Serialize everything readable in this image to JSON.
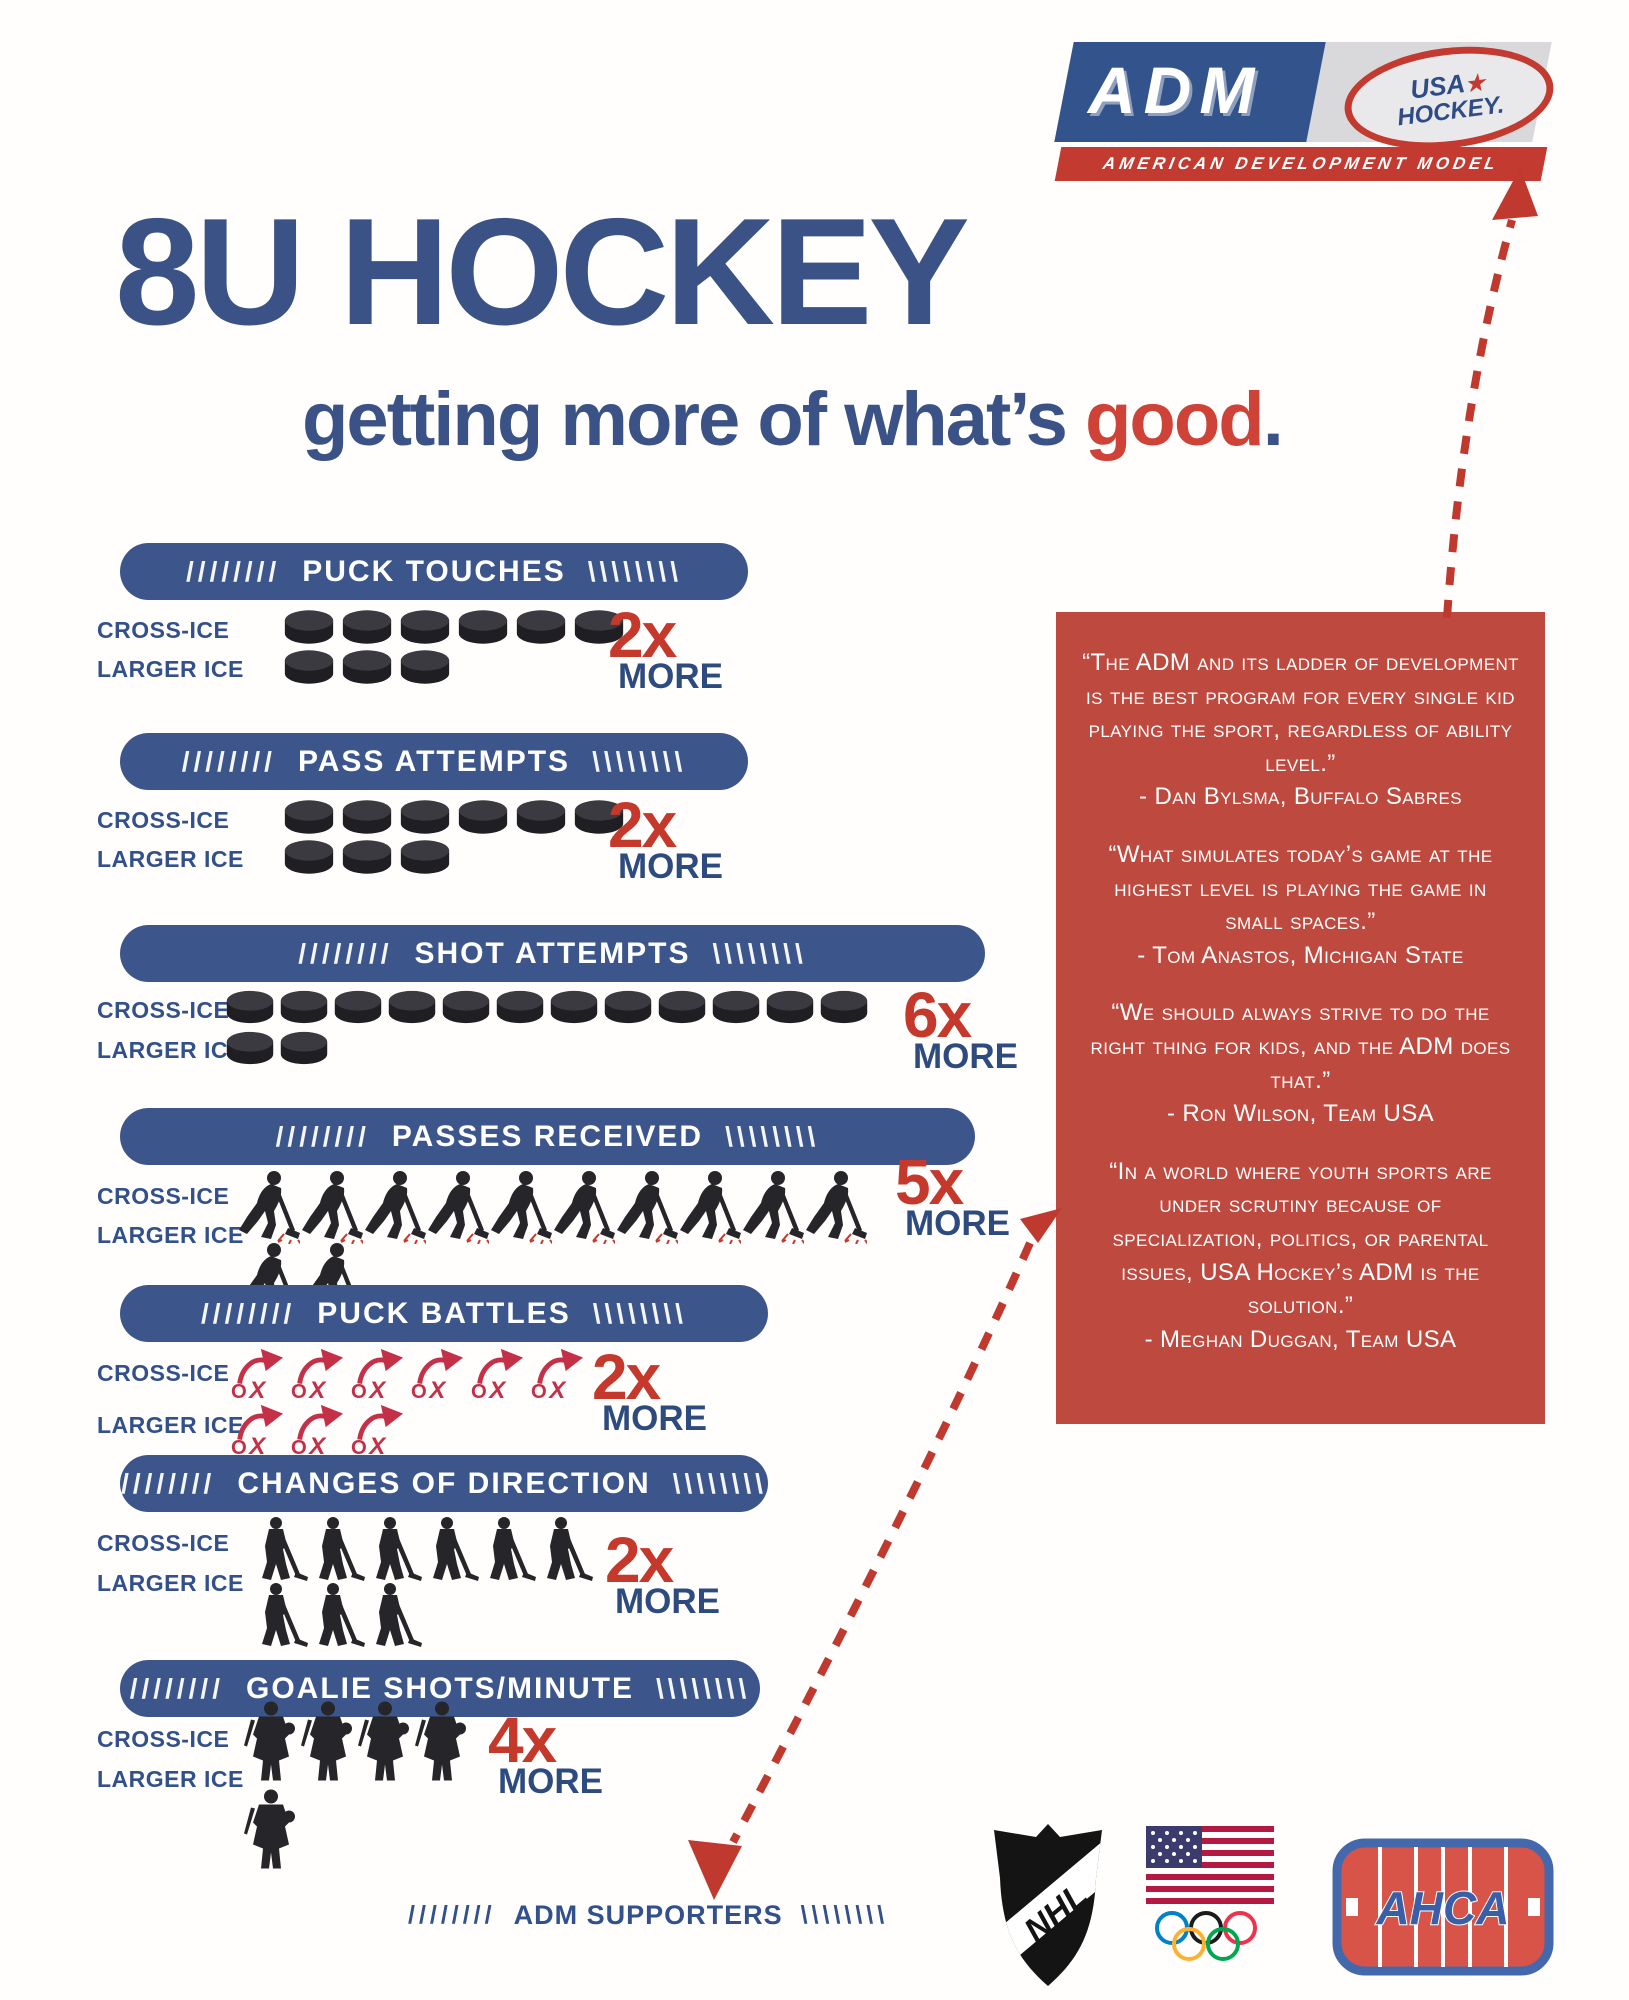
{
  "logo": {
    "adm": "ADM",
    "usa": "USA",
    "star": "★",
    "hockey": "HOCKEY.",
    "tagline": "AMERICAN DEVELOPMENT MODEL"
  },
  "title": "8U HOCKEY",
  "subtitle": {
    "lead": "getting more of what’s ",
    "highlight": "good",
    "period": "."
  },
  "decor": {
    "left": "////////",
    "right": "\\\\\\\\\\\\\\\\"
  },
  "row_labels": {
    "cross": "CROSS-ICE",
    "larger": "LARGER ICE"
  },
  "stats": [
    {
      "label": "PUCK TOUCHES",
      "icon": "puck",
      "cross": 6,
      "larger": 3,
      "mult": "2x",
      "more": "MORE"
    },
    {
      "label": "PASS ATTEMPTS",
      "icon": "puck",
      "cross": 6,
      "larger": 3,
      "mult": "2x",
      "more": "MORE"
    },
    {
      "label": "SHOT ATTEMPTS",
      "icon": "puck",
      "cross": 12,
      "larger": 2,
      "mult": "6x",
      "more": "MORE"
    },
    {
      "label": "PASSES RECEIVED",
      "icon": "skater",
      "cross": 10,
      "larger": 2,
      "mult": "5x",
      "more": "MORE"
    },
    {
      "label": "PUCK BATTLES",
      "icon": "battle",
      "cross": 6,
      "larger": 3,
      "mult": "2x",
      "more": "MORE"
    },
    {
      "label": "CHANGES OF DIRECTION",
      "icon": "player",
      "cross": 6,
      "larger": 3,
      "mult": "2x",
      "more": "MORE"
    },
    {
      "label": "GOALIE SHOTS/MINUTE",
      "icon": "goalie",
      "cross": 4,
      "larger": 1,
      "mult": "4x",
      "more": "MORE"
    }
  ],
  "quotes": [
    {
      "text": "“The ADM and its ladder of development is the best program for every single kid playing the sport, regardless of ability level.”",
      "attribution": "- Dan Bylsma, Buffalo Sabres"
    },
    {
      "text": "“What simulates today’s game at the highest level is playing the game in small spaces.”",
      "attribution": "- Tom Anastos, Michigan State"
    },
    {
      "text": "“We should always strive to do the right thing for kids, and the ADM does that.”",
      "attribution": "- Ron Wilson, Team USA"
    },
    {
      "text": "“In a world where youth sports are under scrutiny because of specialization, politics, or parental issues, USA Hockey’s ADM is the solution.”",
      "attribution": "- Meghan Duggan, Team USA"
    }
  ],
  "footer": {
    "label": "ADM SUPPORTERS",
    "nhl": "NHL",
    "ahca": "AHCA"
  },
  "colors": {
    "blue": "#3A5285",
    "bar_blue": "#3C568B",
    "label_blue": "#32508B",
    "more_blue": "#2E4B7F",
    "red": "#C5382C",
    "box_red": "#BE4A3F",
    "arrow_red": "#C0392F",
    "battle_red": "#C43048",
    "icon_dark": "#26262A"
  }
}
